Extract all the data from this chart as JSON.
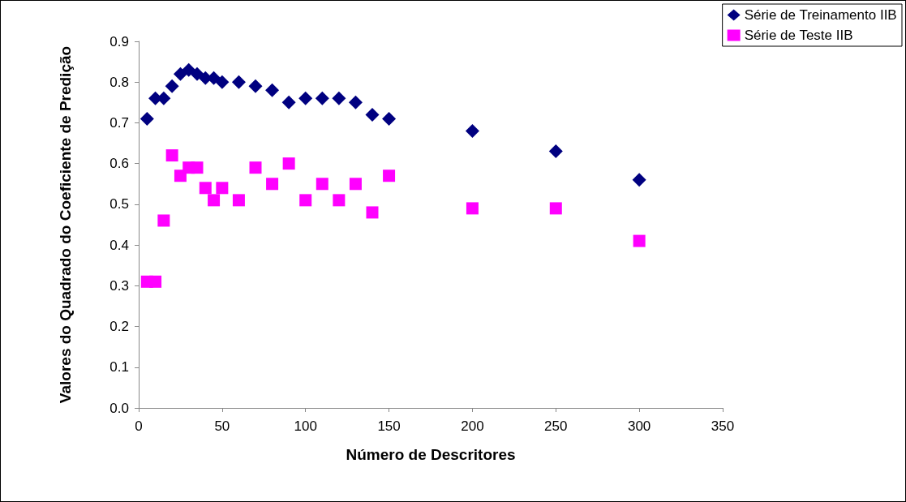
{
  "chart_data": {
    "type": "scatter",
    "xlabel": "Número de Descritores",
    "ylabel": "Valores do Quadrado do Coeficiente de Predição",
    "x": [
      5,
      10,
      15,
      20,
      25,
      30,
      35,
      40,
      45,
      50,
      60,
      70,
      80,
      90,
      100,
      110,
      120,
      130,
      140,
      150,
      200,
      250,
      300
    ],
    "series": [
      {
        "name": "Série de Treinamento IIB",
        "color": "#000080",
        "marker": "diamond",
        "values": [
          0.71,
          0.76,
          0.76,
          0.79,
          0.82,
          0.83,
          0.82,
          0.81,
          0.81,
          0.8,
          0.8,
          0.79,
          0.78,
          0.75,
          0.76,
          0.76,
          0.76,
          0.75,
          0.72,
          0.71,
          0.68,
          0.63,
          0.56
        ]
      },
      {
        "name": "Série de Teste IIB",
        "color": "#ff00ff",
        "marker": "square",
        "values": [
          0.31,
          0.31,
          0.46,
          0.62,
          0.57,
          0.59,
          0.59,
          0.54,
          0.51,
          0.54,
          0.51,
          0.59,
          0.55,
          0.6,
          0.51,
          0.55,
          0.51,
          0.55,
          0.48,
          0.57,
          0.49,
          0.49,
          0.41
        ]
      }
    ],
    "xlim": [
      0,
      350
    ],
    "xticks": [
      0,
      50,
      100,
      150,
      200,
      250,
      300,
      350
    ],
    "ylim": [
      0,
      0.9
    ],
    "yticks": [
      {
        "value": 0,
        "label": "0.0"
      },
      0.1,
      0.2,
      0.3,
      0.4,
      0.5,
      0.6,
      0.7,
      0.8,
      0.9
    ],
    "grid": false,
    "legend": "top right"
  }
}
